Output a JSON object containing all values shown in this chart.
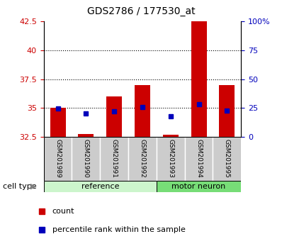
{
  "title": "GDS2786 / 177530_at",
  "samples": [
    "GSM201989",
    "GSM201990",
    "GSM201991",
    "GSM201992",
    "GSM201993",
    "GSM201994",
    "GSM201995"
  ],
  "bar_bottom": 32.5,
  "bar_tops": [
    35.0,
    32.75,
    36.0,
    37.0,
    32.65,
    42.5,
    37.0
  ],
  "blue_positions": [
    34.95,
    34.5,
    34.7,
    35.05,
    34.3,
    35.3,
    34.75
  ],
  "ylim": [
    32.5,
    42.5
  ],
  "yticks_left": [
    32.5,
    35.0,
    37.5,
    40.0,
    42.5
  ],
  "yticks_right": [
    0,
    25,
    50,
    75,
    100
  ],
  "bar_color": "#cc0000",
  "blue_color": "#0000bb",
  "ref_color": "#ccf5cc",
  "motor_color": "#77dd77",
  "legend_count_label": "count",
  "legend_pct_label": "percentile rank within the sample",
  "bar_width": 0.55,
  "cell_type_label": "cell type",
  "n_ref": 4,
  "n_motor": 3
}
